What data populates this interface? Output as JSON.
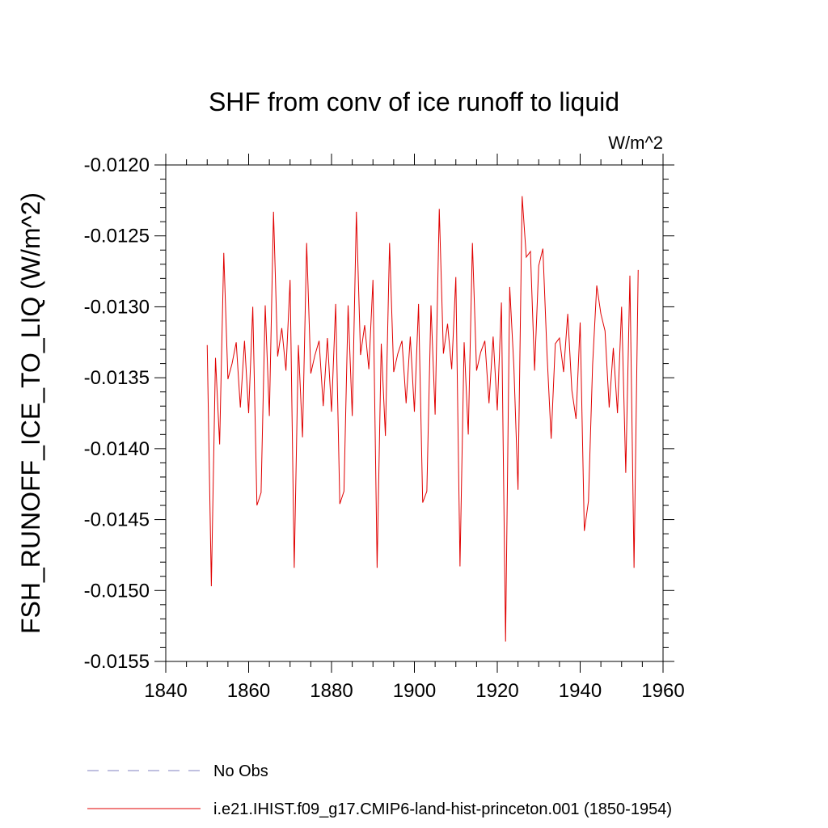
{
  "chart_data": {
    "type": "line",
    "title": "SHF from conv of ice runoff to liquid",
    "units_label": "W/m^2",
    "ylabel": "FSH_RUNOFF_ICE_TO_LIQ  (W/m^2)",
    "xlabel": "",
    "xlim": [
      1840,
      1960
    ],
    "ylim": [
      -0.0155,
      -0.012
    ],
    "x_ticks": [
      1840,
      1860,
      1880,
      1900,
      1920,
      1940,
      1960
    ],
    "x_tick_labels": [
      "1840",
      "1860",
      "1880",
      "1900",
      "1920",
      "1940",
      "1960"
    ],
    "y_ticks": [
      -0.012,
      -0.0125,
      -0.013,
      -0.0135,
      -0.014,
      -0.0145,
      -0.015,
      -0.0155
    ],
    "y_tick_labels": [
      "-0.0120",
      "-0.0125",
      "-0.0130",
      "-0.0135",
      "-0.0140",
      "-0.0145",
      "-0.0150",
      "-0.0155"
    ],
    "grid": false,
    "legend_position": "bottom",
    "legend": [
      {
        "label": "No Obs",
        "color": "#8080c0",
        "style": "dashed"
      },
      {
        "label": "i.e21.IHIST.f09_g17.CMIP6-land-hist-princeton.001 (1850-1954)",
        "color": "#e00000",
        "style": "solid"
      }
    ],
    "series": [
      {
        "color": "#e00000",
        "x": [
          1850,
          1851,
          1852,
          1853,
          1854,
          1855,
          1856,
          1857,
          1858,
          1859,
          1860,
          1861,
          1862,
          1863,
          1864,
          1865,
          1866,
          1867,
          1868,
          1869,
          1870,
          1871,
          1872,
          1873,
          1874,
          1875,
          1876,
          1877,
          1878,
          1879,
          1880,
          1881,
          1882,
          1883,
          1884,
          1885,
          1886,
          1887,
          1888,
          1889,
          1890,
          1891,
          1892,
          1893,
          1894,
          1895,
          1896,
          1897,
          1898,
          1899,
          1900,
          1901,
          1902,
          1903,
          1904,
          1905,
          1906,
          1907,
          1908,
          1909,
          1910,
          1911,
          1912,
          1913,
          1914,
          1915,
          1916,
          1917,
          1918,
          1919,
          1920,
          1921,
          1922,
          1923,
          1924,
          1925,
          1926,
          1927,
          1928,
          1929,
          1930,
          1931,
          1932,
          1933,
          1934,
          1935,
          1936,
          1937,
          1938,
          1939,
          1940,
          1941,
          1942,
          1943,
          1944,
          1945,
          1946,
          1947,
          1948,
          1949,
          1950,
          1951,
          1952,
          1953,
          1954
        ],
        "values": [
          -0.01327,
          -0.01497,
          -0.01336,
          -0.01397,
          -0.01262,
          -0.01351,
          -0.0134,
          -0.01325,
          -0.01371,
          -0.01324,
          -0.01375,
          -0.013,
          -0.0144,
          -0.01431,
          -0.01299,
          -0.01377,
          -0.01233,
          -0.01335,
          -0.01315,
          -0.01345,
          -0.01281,
          -0.01484,
          -0.01327,
          -0.01392,
          -0.01255,
          -0.01347,
          -0.01334,
          -0.01324,
          -0.0137,
          -0.01322,
          -0.01374,
          -0.01298,
          -0.01439,
          -0.0143,
          -0.01299,
          -0.01377,
          -0.01233,
          -0.01334,
          -0.01313,
          -0.01344,
          -0.01281,
          -0.01484,
          -0.01326,
          -0.01391,
          -0.01255,
          -0.01346,
          -0.01333,
          -0.01324,
          -0.01368,
          -0.01321,
          -0.01374,
          -0.01298,
          -0.01438,
          -0.0143,
          -0.01299,
          -0.01376,
          -0.01231,
          -0.01333,
          -0.01312,
          -0.01344,
          -0.01279,
          -0.01483,
          -0.01325,
          -0.0139,
          -0.01255,
          -0.01345,
          -0.01332,
          -0.01324,
          -0.01368,
          -0.01321,
          -0.01373,
          -0.01297,
          -0.01536,
          -0.01286,
          -0.01342,
          -0.01429,
          -0.01222,
          -0.01265,
          -0.01261,
          -0.01345,
          -0.01271,
          -0.01259,
          -0.01333,
          -0.01393,
          -0.01326,
          -0.01322,
          -0.01346,
          -0.01305,
          -0.01359,
          -0.01379,
          -0.01311,
          -0.01458,
          -0.01437,
          -0.01341,
          -0.01285,
          -0.01305,
          -0.01317,
          -0.01371,
          -0.01329,
          -0.01375,
          -0.013,
          -0.01417,
          -0.01278,
          -0.01484,
          -0.01274
        ]
      }
    ]
  }
}
